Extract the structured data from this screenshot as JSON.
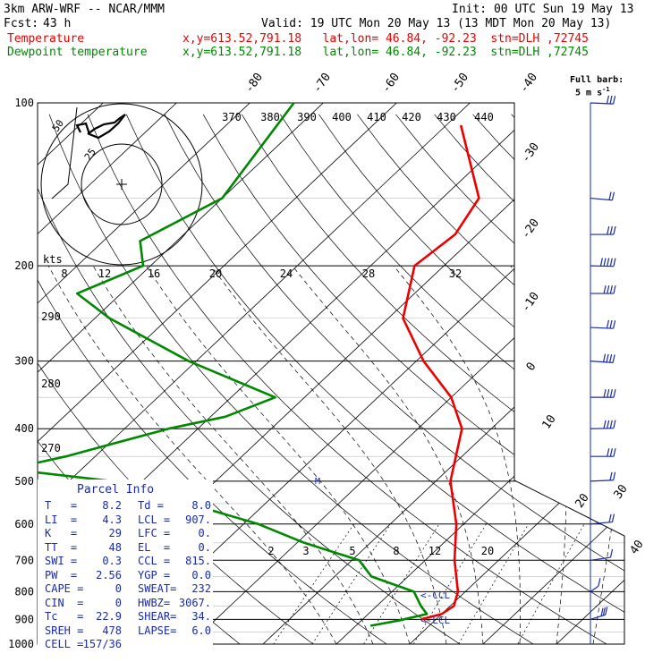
{
  "header": {
    "model": "3km ARW-WRF -- NCAR/MMM",
    "init": "Init: 00 UTC Sun 19 May 13",
    "fcst_label": "Fcst:",
    "fcst_value": "43 h",
    "valid": "Valid: 19 UTC Mon 20 May 13 (13 MDT Mon 20 May 13)",
    "series_temp": "Temperature",
    "series_dew": "Dewpoint temperature",
    "loc_temp": "x,y=613.52,791.18   lat,lon= 46.84, -92.23  stn=DLH ,72745",
    "loc_dew": "x,y=613.52,791.18   lat,lon= 46.84, -92.23  stn=DLH ,72745",
    "barb_legend": "Full barb:",
    "barb_legend_value": "5 m s",
    "barb_legend_exp": "-1"
  },
  "colors": {
    "temperature": "#ee0000",
    "dewpoint": "#008800",
    "parcel": "#1a2aaa",
    "grid": "#000000"
  },
  "chart_data": {
    "type": "line",
    "chart_kind": "skew-T log-p sounding",
    "y_axis_scale": "log pressure",
    "ylim": [
      1000,
      100
    ],
    "pressure_ticks": [
      "100",
      "200",
      "300",
      "400",
      "500",
      "600",
      "700",
      "800",
      "900",
      "1000"
    ],
    "isotherm_labels": [
      "-80",
      "-70",
      "-60",
      "-50",
      "-40",
      "-30",
      "-20",
      "-10",
      "0",
      "10",
      "20",
      "30",
      "40"
    ],
    "theta_labels_top": [
      "370",
      "380",
      "390",
      "400",
      "410",
      "420",
      "430",
      "440"
    ],
    "theta_labels_left": [
      "290",
      "280",
      "270"
    ],
    "mixing_ratio_labels_upper": [
      "8",
      "12",
      "16",
      "20",
      "24",
      "28",
      "32"
    ],
    "mixing_ratio_labels_lower": [
      "2",
      "3",
      "5",
      "8",
      "12",
      "20"
    ],
    "kts_label": "kts",
    "hodograph_ring_labels": [
      "50",
      "25"
    ],
    "lcl_label": "<-LCL",
    "ccl_label": "<-CCL",
    "series": [
      {
        "name": "Temperature",
        "color": "#ee0000",
        "p": [
          110,
          150,
          175,
          200,
          250,
          300,
          350,
          400,
          500,
          600,
          700,
          800,
          850,
          880,
          900
        ],
        "t": [
          -58,
          -45,
          -43,
          -44,
          -38,
          -29,
          -20,
          -14,
          -8,
          -1,
          4,
          9,
          10.5,
          10,
          8
        ]
      },
      {
        "name": "Dewpoint temperature",
        "color": "#008800",
        "p": [
          100,
          150,
          180,
          200,
          225,
          250,
          300,
          350,
          380,
          400,
          450,
          475,
          500,
          600,
          650,
          700,
          750,
          800,
          850,
          880,
          905,
          925
        ],
        "t": [
          -84,
          -80,
          -85,
          -81,
          -86,
          -78,
          -61,
          -44,
          -48,
          -54,
          -64,
          -70,
          -54,
          -28,
          -19,
          -9,
          -5,
          3,
          6,
          8,
          5,
          2
        ]
      }
    ],
    "wind_barbs_mps": [
      {
        "p": 100,
        "speed": 15,
        "dir": 280
      },
      {
        "p": 150,
        "speed": 10,
        "dir": 290
      },
      {
        "p": 175,
        "speed": 15,
        "dir": 270
      },
      {
        "p": 200,
        "speed": 25,
        "dir": 275
      },
      {
        "p": 225,
        "speed": 20,
        "dir": 270
      },
      {
        "p": 260,
        "speed": 15,
        "dir": 280
      },
      {
        "p": 300,
        "speed": 20,
        "dir": 285
      },
      {
        "p": 350,
        "speed": 20,
        "dir": 270
      },
      {
        "p": 400,
        "speed": 20,
        "dir": 265
      },
      {
        "p": 450,
        "speed": 15,
        "dir": 270
      },
      {
        "p": 500,
        "speed": 10,
        "dir": 260
      },
      {
        "p": 600,
        "speed": 10,
        "dir": 250
      },
      {
        "p": 700,
        "speed": 5,
        "dir": 240
      },
      {
        "p": 800,
        "speed": 5,
        "dir": 200
      },
      {
        "p": 900,
        "speed": 15,
        "dir": 220
      }
    ]
  },
  "parcel": {
    "title": "Parcel Info",
    "rows": [
      {
        "k1": "T   =",
        "v1": "8.2",
        "k2": "Td =",
        "v2": "8.0"
      },
      {
        "k1": "LI  =",
        "v1": "4.3",
        "k2": "LCL =",
        "v2": "907."
      },
      {
        "k1": "K   =",
        "v1": "29",
        "k2": "LFC =",
        "v2": "0."
      },
      {
        "k1": "TT  =",
        "v1": "48",
        "k2": "EL  =",
        "v2": "0."
      },
      {
        "k1": "SWI =",
        "v1": "0.3",
        "k2": "CCL =",
        "v2": "815."
      },
      {
        "k1": "PW  =",
        "v1": "2.56",
        "k2": "YGP =",
        "v2": "0.0"
      },
      {
        "k1": "CAPE =",
        "v1": "0",
        "k2": "SWEAT=",
        "v2": "232"
      },
      {
        "k1": "CIN  =",
        "v1": "0",
        "k2": "HWBZ=",
        "v2": "3067."
      },
      {
        "k1": "Tc   =",
        "v1": "22.9",
        "k2": "SHEAR=",
        "v2": "34."
      },
      {
        "k1": "SREH =",
        "v1": "478",
        "k2": "LAPSE=",
        "v2": "6.0"
      },
      {
        "k1": "CELL =",
        "v1": "157/36",
        "k2": "",
        "v2": ""
      }
    ]
  }
}
